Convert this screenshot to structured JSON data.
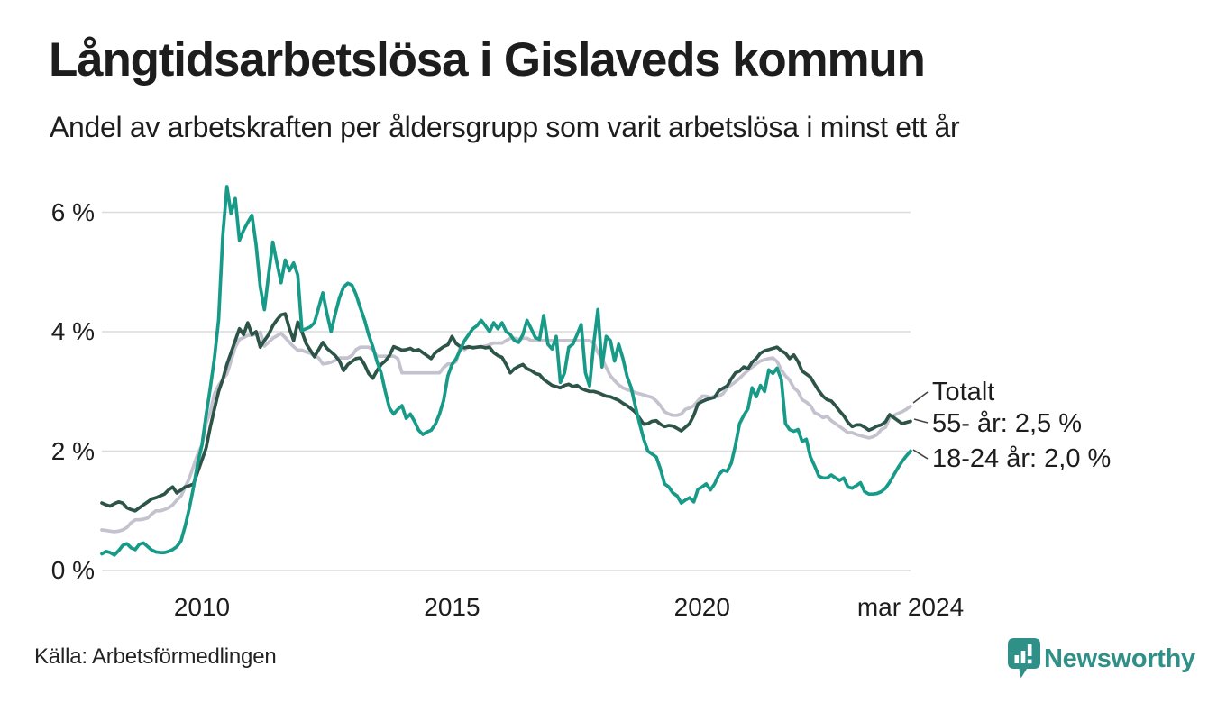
{
  "header": {
    "title": "Långtidsarbetslösa i Gislaveds kommun",
    "subtitle": "Andel av arbetskraften per åldersgrupp som varit arbetslösa i minst ett år"
  },
  "footer": {
    "source": "Källa: Arbetsförmedlingen",
    "brand": "Newsworthy"
  },
  "colors": {
    "teal_line": "#179a87",
    "dark_green_line": "#2d5448",
    "gray_line": "#c3c2ce",
    "grid": "#dcdcdc",
    "text": "#1d1d1d",
    "brand": "#2f9088",
    "connector": "#444444"
  },
  "chart_data": {
    "type": "line",
    "title": "Långtidsarbetslösa i Gislaveds kommun",
    "subtitle": "Andel av arbetskraften per åldersgrupp som varit arbetslösa i minst ett år",
    "unit": "%",
    "frequency": "monthly",
    "x_start": "2008-01",
    "x_end": "2024-03",
    "x_tick_labels": [
      "2010",
      "2015",
      "2020",
      "mar 2024"
    ],
    "x_tick_month_indices": [
      24,
      84,
      144,
      194
    ],
    "y_ticks": [
      0,
      2,
      4,
      6
    ],
    "y_tick_labels": [
      "0 %",
      "2 %",
      "4 %",
      "6 %"
    ],
    "ylim": [
      0,
      6.8
    ],
    "grid": true,
    "legend_position": "end-of-line labels, right side",
    "series": [
      {
        "id": "totalt",
        "name": "Totalt",
        "end_label": "Totalt",
        "color": "#c3c2ce",
        "values": [
          0.68,
          0.67,
          0.66,
          0.65,
          0.66,
          0.68,
          0.72,
          0.8,
          0.85,
          0.85,
          0.86,
          0.88,
          0.95,
          1.0,
          1.0,
          1.02,
          1.05,
          1.1,
          1.18,
          1.25,
          1.4,
          1.55,
          1.75,
          1.95,
          2.1,
          2.46,
          2.65,
          2.96,
          3.1,
          3.2,
          3.29,
          3.51,
          3.74,
          3.87,
          3.9,
          3.94,
          3.94,
          3.96,
          3.99,
          3.76,
          3.82,
          3.89,
          3.93,
          3.97,
          3.9,
          3.82,
          3.75,
          3.69,
          3.69,
          3.66,
          3.64,
          3.6,
          3.56,
          3.46,
          3.47,
          3.49,
          3.52,
          3.56,
          3.56,
          3.56,
          3.6,
          3.7,
          3.74,
          3.74,
          3.74,
          3.7,
          3.59,
          3.59,
          3.59,
          3.59,
          3.59,
          3.55,
          3.31,
          3.31,
          3.31,
          3.31,
          3.31,
          3.31,
          3.31,
          3.31,
          3.31,
          3.31,
          3.4,
          3.46,
          3.46,
          3.5,
          3.74,
          3.7,
          3.74,
          3.74,
          3.74,
          3.74,
          3.76,
          3.78,
          3.81,
          3.81,
          3.81,
          3.85,
          3.89,
          3.89,
          3.87,
          3.89,
          3.89,
          3.85,
          3.85,
          3.85,
          3.85,
          3.85,
          3.85,
          3.85,
          3.85,
          3.85,
          3.85,
          3.85,
          3.85,
          3.85,
          3.85,
          3.85,
          3.81,
          3.65,
          3.55,
          3.4,
          3.26,
          3.18,
          3.11,
          3.06,
          3.03,
          3.01,
          2.98,
          2.96,
          2.94,
          2.92,
          2.9,
          2.84,
          2.76,
          2.66,
          2.62,
          2.6,
          2.6,
          2.62,
          2.7,
          2.72,
          2.76,
          2.84,
          2.92,
          2.92,
          2.9,
          2.92,
          2.92,
          2.96,
          3.06,
          3.11,
          3.16,
          3.22,
          3.29,
          3.35,
          3.41,
          3.46,
          3.51,
          3.53,
          3.55,
          3.56,
          3.5,
          3.36,
          3.26,
          3.19,
          3.06,
          3.0,
          2.86,
          2.82,
          2.76,
          2.64,
          2.61,
          2.56,
          2.58,
          2.51,
          2.46,
          2.41,
          2.36,
          2.31,
          2.31,
          2.28,
          2.26,
          2.24,
          2.22,
          2.24,
          2.28,
          2.36,
          2.4,
          2.56,
          2.6,
          2.63,
          2.66,
          2.7,
          2.75
        ]
      },
      {
        "id": "55",
        "name": "55- år",
        "end_label": "55- år: 2,5 %",
        "end_value_label": "2,5 %",
        "color": "#2d5448",
        "values": [
          1.13,
          1.1,
          1.08,
          1.12,
          1.15,
          1.13,
          1.05,
          1.02,
          1.0,
          1.05,
          1.1,
          1.15,
          1.2,
          1.22,
          1.25,
          1.28,
          1.35,
          1.4,
          1.3,
          1.35,
          1.4,
          1.42,
          1.45,
          1.65,
          1.85,
          2.05,
          2.4,
          2.7,
          3.0,
          3.2,
          3.45,
          3.65,
          3.85,
          4.05,
          3.95,
          4.15,
          3.95,
          4.0,
          3.74,
          3.85,
          3.95,
          4.1,
          4.2,
          4.28,
          4.3,
          4.05,
          3.85,
          4.16,
          4.0,
          3.8,
          3.69,
          3.58,
          3.7,
          3.82,
          3.72,
          3.66,
          3.6,
          3.51,
          3.35,
          3.45,
          3.5,
          3.55,
          3.56,
          3.45,
          3.3,
          3.22,
          3.35,
          3.45,
          3.51,
          3.6,
          3.75,
          3.72,
          3.69,
          3.7,
          3.72,
          3.68,
          3.7,
          3.65,
          3.6,
          3.55,
          3.65,
          3.7,
          3.75,
          3.78,
          3.92,
          3.8,
          3.75,
          3.73,
          3.75,
          3.73,
          3.74,
          3.75,
          3.73,
          3.74,
          3.65,
          3.6,
          3.57,
          3.45,
          3.31,
          3.38,
          3.42,
          3.45,
          3.38,
          3.35,
          3.3,
          3.28,
          3.2,
          3.15,
          3.1,
          3.08,
          3.06,
          3.1,
          3.12,
          3.08,
          3.1,
          3.05,
          3.02,
          3.0,
          3.0,
          2.98,
          2.95,
          2.92,
          2.91,
          2.88,
          2.85,
          2.8,
          2.76,
          2.71,
          2.65,
          2.55,
          2.45,
          2.46,
          2.5,
          2.51,
          2.45,
          2.41,
          2.43,
          2.42,
          2.38,
          2.34,
          2.4,
          2.46,
          2.6,
          2.79,
          2.83,
          2.86,
          2.88,
          2.9,
          3.01,
          3.05,
          3.09,
          3.21,
          3.31,
          3.34,
          3.41,
          3.38,
          3.49,
          3.55,
          3.64,
          3.68,
          3.7,
          3.72,
          3.74,
          3.68,
          3.64,
          3.55,
          3.61,
          3.5,
          3.34,
          3.29,
          3.24,
          3.12,
          3.01,
          2.92,
          2.86,
          2.84,
          2.76,
          2.67,
          2.59,
          2.48,
          2.41,
          2.44,
          2.44,
          2.4,
          2.35,
          2.38,
          2.42,
          2.44,
          2.49,
          2.61,
          2.56,
          2.51,
          2.46,
          2.48,
          2.5
        ]
      },
      {
        "id": "18-24",
        "name": "18-24 år",
        "end_label": "18-24 år: 2,0 %",
        "end_value_label": "2,0 %",
        "color": "#179a87",
        "values": [
          0.28,
          0.32,
          0.3,
          0.26,
          0.33,
          0.42,
          0.45,
          0.38,
          0.35,
          0.44,
          0.46,
          0.4,
          0.34,
          0.31,
          0.3,
          0.3,
          0.32,
          0.35,
          0.4,
          0.5,
          0.75,
          1.05,
          1.4,
          1.8,
          2.1,
          2.6,
          3.05,
          3.55,
          4.2,
          5.6,
          6.43,
          5.98,
          6.23,
          5.53,
          5.7,
          5.83,
          5.95,
          5.45,
          4.75,
          4.37,
          4.95,
          5.5,
          5.15,
          4.82,
          5.2,
          5.02,
          5.15,
          4.95,
          4.02,
          4.05,
          4.08,
          4.15,
          4.4,
          4.65,
          4.3,
          4.0,
          4.3,
          4.57,
          4.75,
          4.81,
          4.78,
          4.62,
          4.4,
          4.2,
          3.95,
          3.75,
          3.5,
          3.31,
          3.0,
          2.72,
          2.62,
          2.7,
          2.76,
          2.55,
          2.62,
          2.5,
          2.35,
          2.28,
          2.32,
          2.35,
          2.45,
          2.62,
          2.85,
          3.26,
          3.45,
          3.55,
          3.7,
          3.85,
          3.95,
          4.05,
          4.1,
          4.19,
          4.1,
          4.0,
          4.15,
          4.05,
          4.15,
          4.0,
          3.95,
          3.85,
          3.82,
          3.95,
          4.19,
          4.05,
          3.9,
          3.87,
          4.27,
          3.79,
          3.71,
          3.92,
          3.15,
          3.31,
          3.74,
          3.79,
          3.95,
          4.12,
          3.31,
          3.09,
          3.8,
          4.37,
          3.41,
          3.92,
          3.85,
          3.51,
          3.79,
          3.55,
          3.25,
          3.06,
          2.75,
          2.46,
          2.2,
          2.0,
          1.95,
          1.9,
          1.7,
          1.45,
          1.4,
          1.3,
          1.25,
          1.13,
          1.18,
          1.22,
          1.15,
          1.36,
          1.4,
          1.45,
          1.35,
          1.45,
          1.6,
          1.68,
          1.66,
          1.8,
          2.1,
          2.46,
          2.6,
          2.71,
          3.06,
          2.91,
          3.1,
          3.0,
          3.36,
          3.3,
          3.39,
          3.2,
          2.46,
          2.36,
          2.33,
          2.36,
          2.16,
          2.2,
          1.9,
          1.75,
          1.58,
          1.55,
          1.55,
          1.6,
          1.55,
          1.51,
          1.55,
          1.4,
          1.38,
          1.42,
          1.47,
          1.32,
          1.28,
          1.28,
          1.29,
          1.32,
          1.38,
          1.48,
          1.6,
          1.72,
          1.83,
          1.92,
          2.0
        ]
      }
    ]
  }
}
